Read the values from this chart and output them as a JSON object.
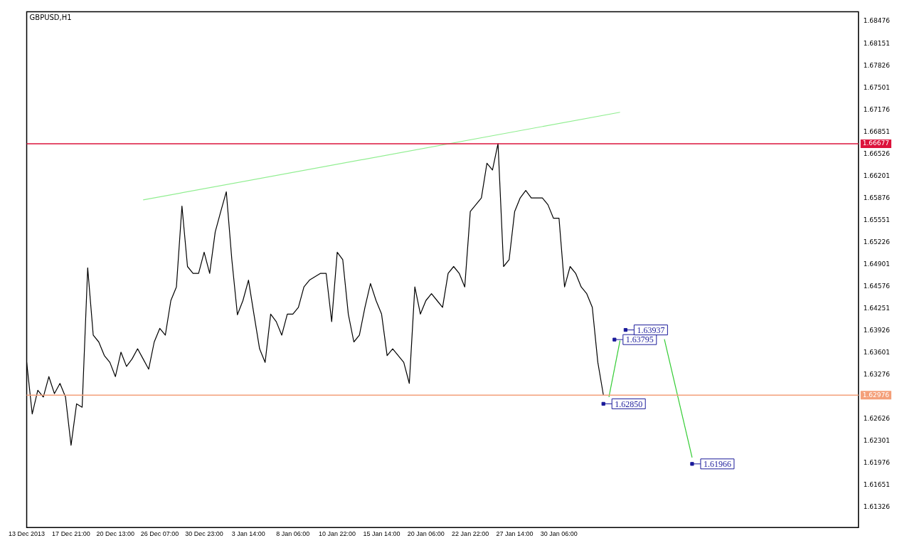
{
  "chart_data": {
    "type": "line",
    "title": "GBPUSD,H1",
    "categories": [
      "13 Dec 2013",
      null,
      null,
      null,
      null,
      null,
      null,
      null,
      "17 Dec 21:00",
      null,
      null,
      null,
      null,
      null,
      null,
      null,
      "20 Dec 13:00",
      null,
      null,
      null,
      null,
      null,
      null,
      null,
      "26 Dec 07:00",
      null,
      null,
      null,
      null,
      null,
      null,
      null,
      "30 Dec 23:00",
      null,
      null,
      null,
      null,
      null,
      null,
      null,
      "3 Jan 14:00",
      null,
      null,
      null,
      null,
      null,
      null,
      null,
      "8 Jan 06:00",
      null,
      null,
      null,
      null,
      null,
      null,
      null,
      "10 Jan 22:00",
      null,
      null,
      null,
      null,
      null,
      null,
      null,
      "15 Jan 14:00",
      null,
      null,
      null,
      null,
      null,
      null,
      null,
      "20 Jan 06:00",
      null,
      null,
      null,
      null,
      null,
      null,
      null,
      "22 Jan 22:00",
      null,
      null,
      null,
      null,
      null,
      null,
      null,
      "27 Jan 14:00",
      null,
      null,
      null,
      null,
      null,
      null,
      null,
      "30 Jan 06:00",
      null,
      null,
      null,
      null,
      null,
      null,
      null,
      null,
      null,
      null,
      null,
      null,
      null,
      null,
      null,
      null,
      null,
      null,
      null,
      null,
      null,
      null,
      null,
      null,
      null,
      null,
      null,
      null,
      null,
      null,
      null,
      null,
      null,
      null,
      null,
      null,
      null,
      null,
      null,
      null,
      null,
      null,
      null,
      null,
      null,
      null,
      null,
      null,
      null,
      null,
      null,
      null,
      null,
      null
    ],
    "ylim": [
      1.6103,
      1.6862
    ],
    "yticks": [
      1.68476,
      1.68151,
      1.67826,
      1.67501,
      1.67176,
      1.66851,
      1.66526,
      1.66201,
      1.65876,
      1.65551,
      1.65226,
      1.64901,
      1.64576,
      1.64251,
      1.63926,
      1.63601,
      1.63276,
      1.62626,
      1.62301,
      1.61976,
      1.61651,
      1.61326
    ],
    "grid": false,
    "legend": false,
    "marker": "none",
    "line_style": "solid",
    "series": [
      {
        "color": "#000000",
        "values": [
          1.6346,
          1.627,
          1.6305,
          1.6295,
          1.6325,
          1.63,
          1.6315,
          1.6295,
          1.6224,
          1.6285,
          1.628,
          1.6485,
          1.6386,
          1.6376,
          1.6356,
          1.6346,
          1.6325,
          1.6361,
          1.634,
          1.6351,
          1.6366,
          1.6351,
          1.6336,
          1.6376,
          1.6396,
          1.6386,
          1.6437,
          1.6457,
          1.6576,
          1.6487,
          1.6477,
          1.6477,
          1.6508,
          1.6477,
          1.6538,
          1.6568,
          1.6597,
          1.6497,
          1.6416,
          1.6437,
          1.6467,
          1.6416,
          1.6366,
          1.6346,
          1.6417,
          1.6406,
          1.6386,
          1.6417,
          1.6417,
          1.6427,
          1.6457,
          1.6467,
          1.6472,
          1.6477,
          1.6477,
          1.6406,
          1.6508,
          1.6497,
          1.6417,
          1.6376,
          1.6386,
          1.6427,
          1.6462,
          1.6437,
          1.6417,
          1.6356,
          1.6366,
          1.6356,
          1.6346,
          1.6315,
          1.6457,
          1.6417,
          1.6437,
          1.6447,
          1.6437,
          1.6427,
          1.6477,
          1.6487,
          1.6477,
          1.6457,
          1.6568,
          1.6578,
          1.6588,
          1.6639,
          1.6629,
          1.6668,
          1.6487,
          1.6497,
          1.6568,
          1.6588,
          1.6599,
          1.6588,
          1.6588,
          1.6588,
          1.6578,
          1.6558,
          1.6558,
          1.6457,
          1.6487,
          1.6477,
          1.6457,
          1.6447,
          1.6427,
          1.6346,
          1.6298,
          null,
          null,
          null,
          null,
          null,
          null,
          null,
          null,
          null,
          null,
          null,
          null,
          null,
          null,
          null,
          null,
          null,
          null,
          null,
          null,
          null,
          null,
          null,
          null,
          null,
          null,
          null,
          null,
          null,
          null,
          null,
          null,
          null,
          null,
          null,
          null,
          null,
          null,
          null,
          null,
          null,
          null,
          null,
          null,
          null,
          null
        ]
      },
      {
        "color": "#90ee90",
        "values": [
          null,
          null,
          null,
          null,
          null,
          null,
          null,
          null,
          null,
          null,
          null,
          null,
          null,
          null,
          null,
          null,
          null,
          null,
          null,
          null,
          null,
          1.6585,
          null,
          null,
          null,
          null,
          null,
          null,
          null,
          null,
          null,
          null,
          null,
          null,
          null,
          null,
          null,
          null,
          null,
          null,
          null,
          null,
          null,
          null,
          null,
          null,
          null,
          null,
          null,
          null,
          null,
          null,
          null,
          null,
          null,
          null,
          null,
          null,
          null,
          null,
          null,
          null,
          null,
          null,
          null,
          null,
          null,
          null,
          null,
          null,
          null,
          null,
          null,
          null,
          null,
          null,
          null,
          null,
          null,
          null,
          null,
          null,
          null,
          null,
          null,
          null,
          null,
          null,
          null,
          null,
          null,
          null,
          null,
          null,
          null,
          null,
          null,
          null,
          null,
          null,
          null,
          null,
          null,
          null,
          null,
          null,
          null,
          1.6714,
          null,
          null,
          null,
          null,
          null,
          null,
          null,
          null,
          null,
          null,
          null,
          null,
          null,
          null,
          null,
          null,
          null,
          null,
          null,
          null,
          null,
          null,
          null,
          null,
          null,
          null,
          null,
          null,
          null,
          null,
          null,
          null,
          null,
          null,
          null,
          null,
          null,
          null,
          null,
          null,
          null,
          null,
          null
        ]
      },
      {
        "color": "#33cc33",
        "values": [
          null,
          null,
          null,
          null,
          null,
          null,
          null,
          null,
          null,
          null,
          null,
          null,
          null,
          null,
          null,
          null,
          null,
          null,
          null,
          null,
          null,
          null,
          null,
          null,
          null,
          null,
          null,
          null,
          null,
          null,
          null,
          null,
          null,
          null,
          null,
          null,
          null,
          null,
          null,
          null,
          null,
          null,
          null,
          null,
          null,
          null,
          null,
          null,
          null,
          null,
          null,
          null,
          null,
          null,
          null,
          null,
          null,
          null,
          null,
          null,
          null,
          null,
          null,
          null,
          null,
          null,
          null,
          null,
          null,
          null,
          null,
          null,
          null,
          null,
          null,
          null,
          null,
          null,
          null,
          null,
          null,
          null,
          null,
          null,
          null,
          null,
          null,
          null,
          null,
          null,
          null,
          null,
          null,
          null,
          null,
          null,
          null,
          null,
          null,
          null,
          null,
          null,
          null,
          null,
          null,
          1.6295,
          null,
          1.6378,
          null,
          null,
          null,
          null,
          null,
          null,
          null,
          null,
          null,
          null,
          null,
          null,
          null,
          null,
          null,
          null,
          null,
          null,
          null,
          null,
          null,
          null,
          null,
          null,
          null,
          null,
          null,
          null,
          null,
          null,
          null,
          null,
          null,
          null,
          null,
          null,
          null,
          null,
          null,
          null,
          null,
          null,
          null
        ]
      },
      {
        "color": "#33cc33",
        "values": [
          null,
          null,
          null,
          null,
          null,
          null,
          null,
          null,
          null,
          null,
          null,
          null,
          null,
          null,
          null,
          null,
          null,
          null,
          null,
          null,
          null,
          null,
          null,
          null,
          null,
          null,
          null,
          null,
          null,
          null,
          null,
          null,
          null,
          null,
          null,
          null,
          null,
          null,
          null,
          null,
          null,
          null,
          null,
          null,
          null,
          null,
          null,
          null,
          null,
          null,
          null,
          null,
          null,
          null,
          null,
          null,
          null,
          null,
          null,
          null,
          null,
          null,
          null,
          null,
          null,
          null,
          null,
          null,
          null,
          null,
          null,
          null,
          null,
          null,
          null,
          null,
          null,
          null,
          null,
          null,
          null,
          null,
          null,
          null,
          null,
          null,
          null,
          null,
          null,
          null,
          null,
          null,
          null,
          null,
          null,
          null,
          null,
          null,
          null,
          null,
          null,
          null,
          null,
          null,
          null,
          null,
          null,
          null,
          null,
          null,
          null,
          null,
          null,
          null,
          null,
          1.638,
          null,
          null,
          null,
          null,
          1.6206,
          null,
          null,
          null,
          null,
          null,
          null,
          null,
          null,
          null,
          null,
          null,
          null,
          null,
          null,
          null,
          null,
          null,
          null,
          null,
          null,
          null,
          null,
          null,
          null,
          null,
          null,
          null,
          null,
          null,
          null
        ]
      },
      {
        "type": "scatter",
        "marker": "square",
        "color": "#1a1a9a",
        "values": [
          null,
          null,
          null,
          null,
          null,
          null,
          null,
          null,
          null,
          null,
          null,
          null,
          null,
          null,
          null,
          null,
          null,
          null,
          null,
          null,
          null,
          null,
          null,
          null,
          null,
          null,
          null,
          null,
          null,
          null,
          null,
          null,
          null,
          null,
          null,
          null,
          null,
          null,
          null,
          null,
          null,
          null,
          null,
          null,
          null,
          null,
          null,
          null,
          null,
          null,
          null,
          null,
          null,
          null,
          null,
          null,
          null,
          null,
          null,
          null,
          null,
          null,
          null,
          null,
          null,
          null,
          null,
          null,
          null,
          null,
          null,
          null,
          null,
          null,
          null,
          null,
          null,
          null,
          null,
          null,
          null,
          null,
          null,
          null,
          null,
          null,
          null,
          null,
          null,
          null,
          null,
          null,
          null,
          null,
          null,
          null,
          null,
          null,
          null,
          null,
          null,
          null,
          null,
          null,
          1.6285,
          null,
          1.63795,
          null,
          1.63937,
          null,
          null,
          null,
          null,
          null,
          null,
          null,
          null,
          null,
          null,
          null,
          1.61966,
          null,
          null,
          null,
          null,
          null,
          null,
          null,
          null,
          null,
          null,
          null,
          null,
          null,
          null,
          null,
          null,
          null,
          null,
          null,
          null,
          null,
          null,
          null,
          null,
          null,
          null,
          null,
          null,
          null,
          null
        ],
        "value_labels": [
          null,
          null,
          null,
          null,
          null,
          null,
          null,
          null,
          null,
          null,
          null,
          null,
          null,
          null,
          null,
          null,
          null,
          null,
          null,
          null,
          null,
          null,
          null,
          null,
          null,
          null,
          null,
          null,
          null,
          null,
          null,
          null,
          null,
          null,
          null,
          null,
          null,
          null,
          null,
          null,
          null,
          null,
          null,
          null,
          null,
          null,
          null,
          null,
          null,
          null,
          null,
          null,
          null,
          null,
          null,
          null,
          null,
          null,
          null,
          null,
          null,
          null,
          null,
          null,
          null,
          null,
          null,
          null,
          null,
          null,
          null,
          null,
          null,
          null,
          null,
          null,
          null,
          null,
          null,
          null,
          null,
          null,
          null,
          null,
          null,
          null,
          null,
          null,
          null,
          null,
          null,
          null,
          null,
          null,
          null,
          null,
          null,
          null,
          null,
          null,
          null,
          null,
          null,
          null,
          "1.62850",
          null,
          "1.63795",
          null,
          "1.63937",
          null,
          null,
          null,
          null,
          null,
          null,
          null,
          null,
          null,
          null,
          null,
          "1.61966",
          null,
          null,
          null,
          null,
          null,
          null,
          null,
          null,
          null,
          null,
          null,
          null,
          null,
          null,
          null,
          null,
          null,
          null,
          null,
          null,
          null,
          null,
          null,
          null,
          null,
          null,
          null,
          null,
          null,
          null
        ]
      }
    ],
    "ref_lines": [
      {
        "axis": "y",
        "value": 1.66677,
        "label": "1.66677",
        "color": "#dc143c"
      },
      {
        "axis": "y",
        "value": 1.62976,
        "label": "1.62976",
        "color": "#f4a07a"
      }
    ]
  }
}
